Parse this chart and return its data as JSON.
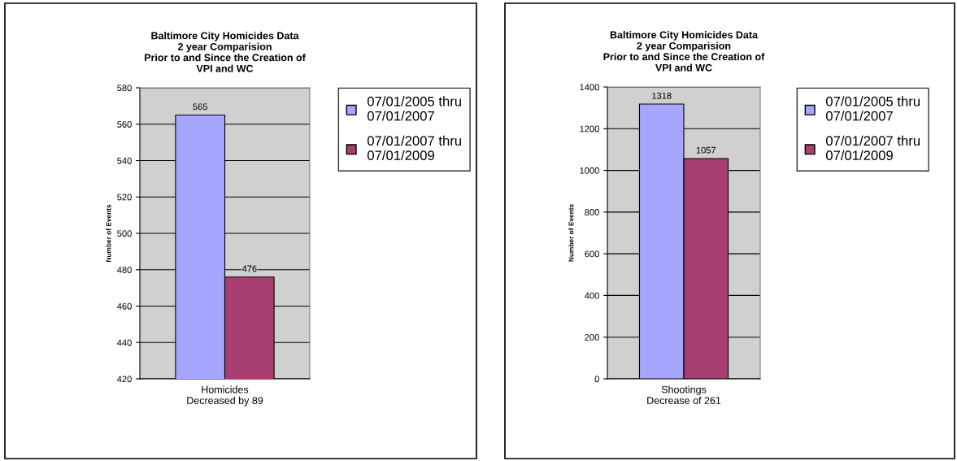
{
  "chart_data": [
    {
      "type": "bar",
      "title": "Baltimore City Homicides Data\n2 year Comparision\nPrior to and Since the Creation of\nVPI and WC",
      "ylabel": "Number of Events",
      "categories": [
        "Homicides\nDecreased by 89"
      ],
      "series": [
        {
          "name": "07/01/2005 thru\n07/01/2007",
          "color": "#a6a6ff",
          "values": [
            565
          ]
        },
        {
          "name": "07/01/2007 thru\n07/01/2009",
          "color": "#a63f6f",
          "values": [
            476
          ]
        }
      ],
      "ylim": [
        420,
        580
      ],
      "yticks": [
        420,
        440,
        460,
        480,
        500,
        520,
        540,
        560,
        580
      ],
      "grid": "y",
      "legend": "right",
      "data_labels": true
    },
    {
      "type": "bar",
      "title": "Baltimore City Homicides Data\n2 year Comparision\nPrior to and Since the Creation of\nVPI and WC",
      "ylabel": "Number of Events",
      "categories": [
        "Shootings\nDecrease of 261"
      ],
      "series": [
        {
          "name": "07/01/2005 thru\n07/01/2007",
          "color": "#a6a6ff",
          "values": [
            1318
          ]
        },
        {
          "name": "07/01/2007 thru\n07/01/2009",
          "color": "#a63f6f",
          "values": [
            1057
          ]
        }
      ],
      "ylim": [
        0,
        1400
      ],
      "yticks": [
        0,
        200,
        400,
        600,
        800,
        1000,
        1200,
        1400
      ],
      "grid": "y",
      "legend": "right",
      "data_labels": true
    }
  ]
}
